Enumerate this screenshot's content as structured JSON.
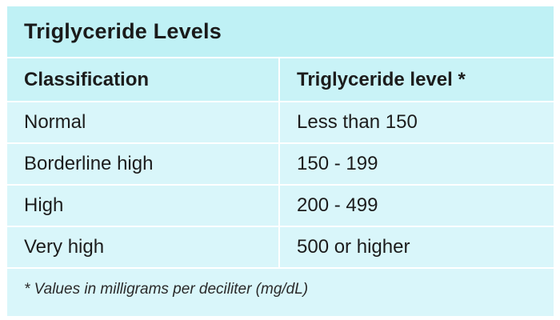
{
  "title": "Triglyceride Levels",
  "table": {
    "headers": [
      "Classification",
      "Triglyceride level *"
    ],
    "rows": [
      [
        "Normal",
        "Less than 150"
      ],
      [
        "Borderline high",
        "150 - 199"
      ],
      [
        "High",
        "200 - 499"
      ],
      [
        "Very high",
        "500 or higher"
      ]
    ]
  },
  "footnote": "* Values in milligrams per deciliter (mg/dL)",
  "colors": {
    "title_background": "#bff1f5",
    "table_background": "#d9f6fa",
    "divider": "#ffffff"
  }
}
